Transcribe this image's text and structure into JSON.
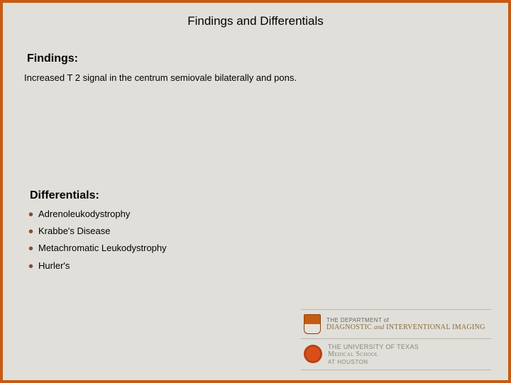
{
  "title": "Findings and Differentials",
  "findings": {
    "heading": "Findings:",
    "text": "Increased T 2 signal in the centrum semiovale bilaterally and pons."
  },
  "differentials": {
    "heading": "Differentials:",
    "items": [
      "Adrenoleukodystrophy",
      "Krabbe's Disease",
      "Metachromatic Leukodystrophy",
      "Hurler's"
    ]
  },
  "footer": {
    "dept_line1": "THE DEPARTMENT of",
    "dept_line2a": "DIAGNOSTIC",
    "dept_line2_amp": "and",
    "dept_line2b": "INTERVENTIONAL IMAGING",
    "ut_line1": "THE UNIVERSITY OF TEXAS",
    "ut_line2": "Medical School",
    "ut_line3": "AT HOUSTON"
  },
  "colors": {
    "border": "#c75b12",
    "background": "#e0dfda",
    "bullet": "#8a4a2a",
    "text": "#000000"
  }
}
